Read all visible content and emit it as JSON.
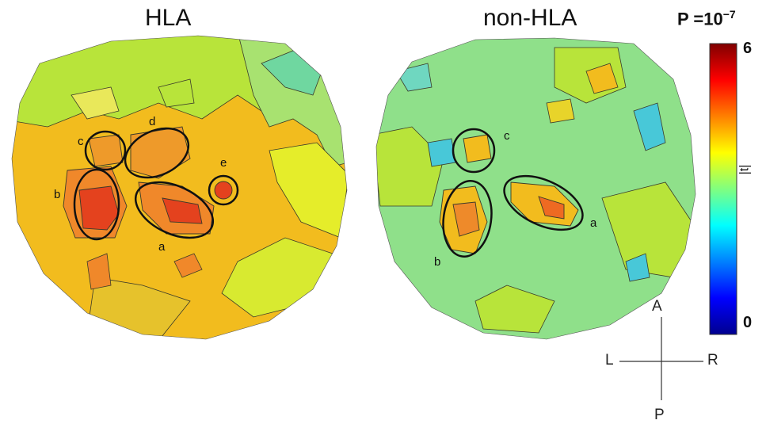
{
  "maps": {
    "left_title": "HLA",
    "right_title": "non-HLA"
  },
  "colorbar": {
    "p_value_base": "P =10",
    "p_value_exp": "−7",
    "max_label": "6",
    "min_label": "0",
    "axis_label": "|t|",
    "colormap": [
      "#00008f",
      "#0000ff",
      "#0080ff",
      "#00ffff",
      "#80ff80",
      "#ffff00",
      "#ff8000",
      "#ff0000",
      "#800000"
    ]
  },
  "left_regions": [
    "a",
    "b",
    "c",
    "d",
    "e"
  ],
  "right_regions": [
    "a",
    "b",
    "c"
  ],
  "orientation": {
    "anterior": "A",
    "posterior": "P",
    "left": "L",
    "right": "R"
  }
}
